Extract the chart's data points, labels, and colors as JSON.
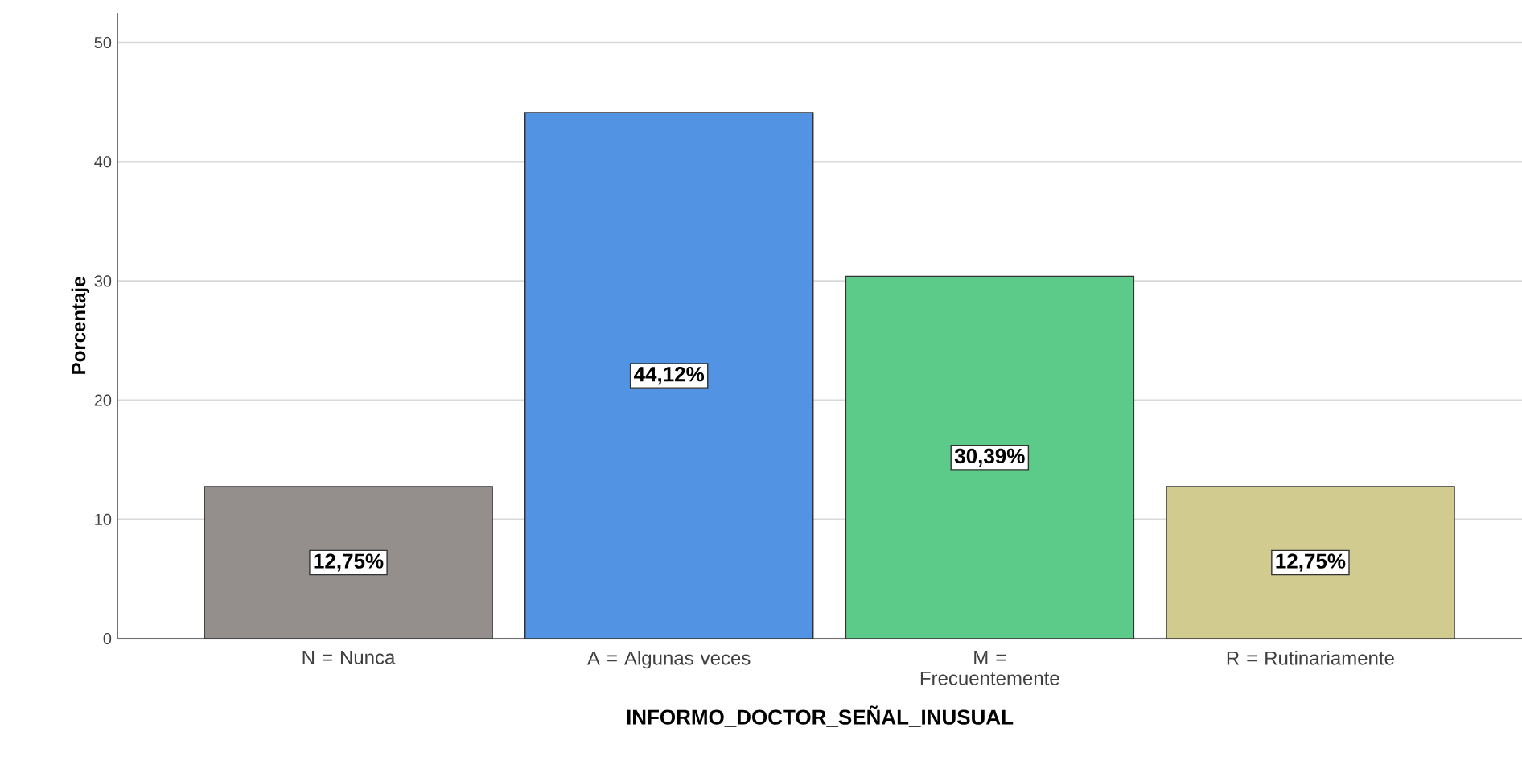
{
  "chart_data": {
    "type": "bar",
    "xlabel": "INFORMO_DOCTOR_SEÑAL_INUSUAL",
    "ylabel": "Porcentaje",
    "categories": [
      "N = Nunca",
      "A = Algunas veces",
      "M = Frecuentemente",
      "R = Rutinariamente"
    ],
    "values": [
      12.75,
      44.12,
      30.39,
      12.75
    ],
    "value_labels": [
      "12,75%",
      "44,12%",
      "30,39%",
      "12,75%"
    ],
    "colors": [
      "#948f8d",
      "#5294e3",
      "#5ccb8a",
      "#d2cb8f"
    ],
    "ylim": [
      0,
      52.5
    ],
    "yticks": [
      0,
      10,
      20,
      30,
      40,
      50
    ],
    "grid": "y"
  }
}
